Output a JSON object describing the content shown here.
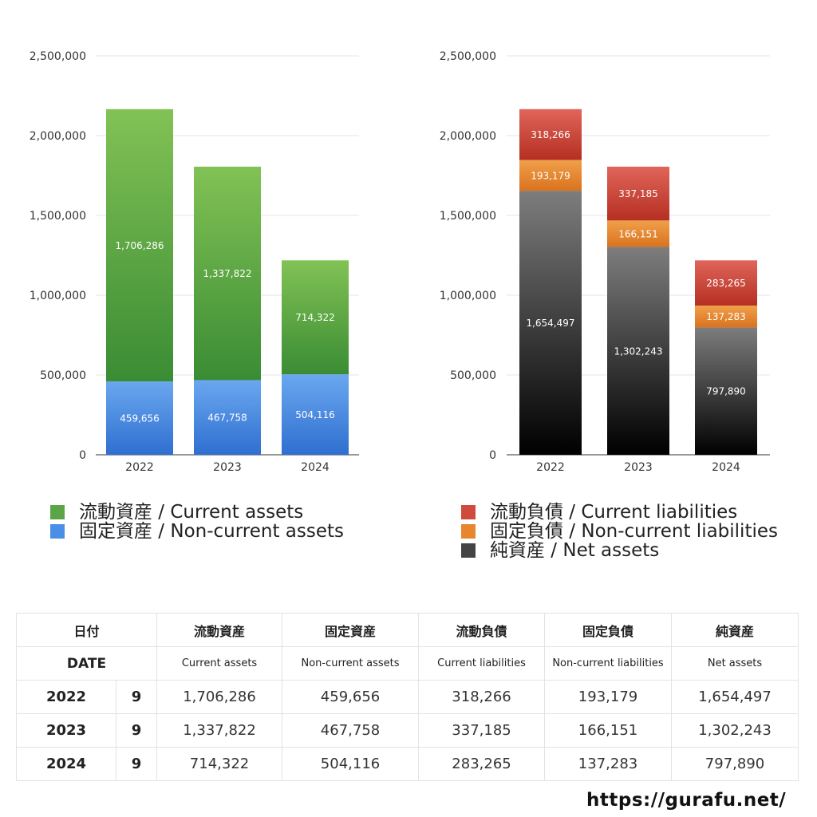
{
  "chart_data": [
    {
      "type": "bar",
      "stacked": true,
      "categories": [
        "2022",
        "2023",
        "2024"
      ],
      "series": [
        {
          "name": "固定資産 / Non-current assets",
          "values": [
            459656,
            467758,
            504116
          ],
          "labels": [
            "459,656",
            "467,758",
            "504,116"
          ],
          "color_top": "#6aa7f0",
          "color_bottom": "#2f6fcf"
        },
        {
          "name": "流動資産 / Current assets",
          "values": [
            1706286,
            1337822,
            714322
          ],
          "labels": [
            "1,706,286",
            "1,337,822",
            "714,322"
          ],
          "color_top": "#82c255",
          "color_bottom": "#3a8c34"
        }
      ],
      "ylim": [
        0,
        2500000
      ],
      "yticks": [
        0,
        500000,
        1000000,
        1500000,
        2000000,
        2500000
      ],
      "ytick_labels": [
        "0",
        "500,000",
        "1,000,000",
        "1,500,000",
        "2,000,000",
        "2,500,000"
      ],
      "grid": true,
      "legend": "bottom"
    },
    {
      "type": "bar",
      "stacked": true,
      "categories": [
        "2022",
        "2023",
        "2024"
      ],
      "series": [
        {
          "name": "純資産 / Net assets",
          "values": [
            1654497,
            1302243,
            797890
          ],
          "labels": [
            "1,654,497",
            "1,302,243",
            "797,890"
          ],
          "color_top": "#7d7d7d",
          "color_bottom": "#000000"
        },
        {
          "name": "固定負債 / Non-current liabilities",
          "values": [
            193179,
            166151,
            137283
          ],
          "labels": [
            "193,179",
            "166,151",
            "137,283"
          ],
          "color_top": "#f0a04a",
          "color_bottom": "#d9721e"
        },
        {
          "name": "流動負債 / Current liabilities",
          "values": [
            318266,
            337185,
            283265
          ],
          "labels": [
            "318,266",
            "337,185",
            "283,265"
          ],
          "color_top": "#e0655a",
          "color_bottom": "#b52f22"
        }
      ],
      "ylim": [
        0,
        2500000
      ],
      "yticks": [
        0,
        500000,
        1000000,
        1500000,
        2000000,
        2500000
      ],
      "ytick_labels": [
        "0",
        "500,000",
        "1,000,000",
        "1,500,000",
        "2,000,000",
        "2,500,000"
      ],
      "grid": true,
      "legend": "bottom"
    }
  ],
  "legends": {
    "left": [
      {
        "label": "流動資産 / Current assets",
        "color": "#5aa548"
      },
      {
        "label": "固定資産 / Non-current assets",
        "color": "#4a8ee6"
      }
    ],
    "right": [
      {
        "label": "流動負債 / Current liabilities",
        "color": "#d04b3e"
      },
      {
        "label": "固定負債 / Non-current liabilities",
        "color": "#e8862e"
      },
      {
        "label": "純資産 / Net assets",
        "color": "#444444"
      }
    ]
  },
  "table": {
    "header_jp": {
      "date": "日付",
      "cols": [
        "流動資産",
        "固定資産",
        "流動負債",
        "固定負債",
        "純資産"
      ]
    },
    "header_en": {
      "date": "DATE",
      "cols": [
        "Current assets",
        "Non-current assets",
        "Current liabilities",
        "Non-current liabilities",
        "Net assets"
      ]
    },
    "rows": [
      {
        "year": "2022",
        "month": "9",
        "values": [
          "1,706,286",
          "459,656",
          "318,266",
          "193,179",
          "1,654,497"
        ]
      },
      {
        "year": "2023",
        "month": "9",
        "values": [
          "1,337,822",
          "467,758",
          "337,185",
          "166,151",
          "1,302,243"
        ]
      },
      {
        "year": "2024",
        "month": "9",
        "values": [
          "714,322",
          "504,116",
          "283,265",
          "137,283",
          "797,890"
        ]
      }
    ]
  },
  "site": "https://gurafu.net/"
}
